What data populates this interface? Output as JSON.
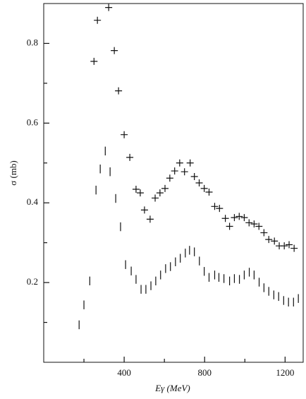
{
  "chart_data": {
    "type": "scatter",
    "xlabel": "Eγ (MeV)",
    "ylabel": "σ (mb)",
    "xlim": [
      0,
      1290
    ],
    "ylim": [
      0,
      0.9
    ],
    "xticks": [
      400,
      800,
      1200
    ],
    "x_minor_ticks": [
      200,
      600,
      1000
    ],
    "yticks": [
      0.2,
      0.4,
      0.6,
      0.8
    ],
    "y_minor_ticks": [
      0.1,
      0.3,
      0.5,
      0.7
    ],
    "color": "#111111",
    "series": [
      {
        "marker": "cross",
        "x": [
          250,
          267,
          323,
          351,
          372,
          400,
          428,
          459,
          480,
          501,
          529,
          554,
          578,
          603,
          627,
          651,
          676,
          700,
          728,
          749,
          773,
          798,
          822,
          850,
          874,
          903,
          924,
          948,
          972,
          997,
          1021,
          1046,
          1070,
          1095,
          1119,
          1147,
          1171,
          1196,
          1220,
          1245
        ],
        "values": [
          0.755,
          0.858,
          0.89,
          0.782,
          0.681,
          0.571,
          0.514,
          0.434,
          0.425,
          0.382,
          0.359,
          0.412,
          0.425,
          0.436,
          0.462,
          0.48,
          0.5,
          0.478,
          0.5,
          0.466,
          0.45,
          0.436,
          0.427,
          0.391,
          0.386,
          0.361,
          0.341,
          0.363,
          0.366,
          0.363,
          0.35,
          0.347,
          0.341,
          0.325,
          0.308,
          0.304,
          0.292,
          0.292,
          0.295,
          0.286
        ]
      },
      {
        "marker": "bar",
        "x": [
          176,
          200,
          229,
          260,
          281,
          306,
          330,
          358,
          382,
          407,
          435,
          459,
          484,
          508,
          533,
          557,
          581,
          606,
          630,
          655,
          679,
          704,
          725,
          749,
          774,
          798,
          822,
          850,
          871,
          896,
          924,
          948,
          973,
          997,
          1022,
          1046,
          1071,
          1095,
          1119,
          1144,
          1168,
          1193,
          1217,
          1242,
          1266
        ],
        "values": [
          0.094,
          0.144,
          0.204,
          0.432,
          0.485,
          0.53,
          0.478,
          0.411,
          0.34,
          0.245,
          0.229,
          0.208,
          0.183,
          0.183,
          0.192,
          0.204,
          0.219,
          0.235,
          0.24,
          0.252,
          0.261,
          0.274,
          0.281,
          0.277,
          0.254,
          0.228,
          0.213,
          0.219,
          0.213,
          0.21,
          0.204,
          0.21,
          0.208,
          0.219,
          0.226,
          0.219,
          0.201,
          0.187,
          0.178,
          0.169,
          0.165,
          0.155,
          0.151,
          0.151,
          0.16
        ],
        "errors": [
          0.011,
          0.011,
          0.011,
          0.011,
          0.011,
          0.011,
          0.011,
          0.011,
          0.011,
          0.011,
          0.011,
          0.011,
          0.011,
          0.011,
          0.011,
          0.011,
          0.011,
          0.011,
          0.011,
          0.011,
          0.011,
          0.011,
          0.011,
          0.011,
          0.011,
          0.011,
          0.011,
          0.011,
          0.011,
          0.011,
          0.011,
          0.011,
          0.011,
          0.011,
          0.011,
          0.011,
          0.011,
          0.011,
          0.011,
          0.011,
          0.011,
          0.011,
          0.011,
          0.011,
          0.011
        ]
      }
    ]
  }
}
